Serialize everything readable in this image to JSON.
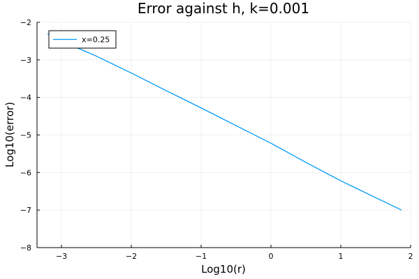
{
  "chart_data": {
    "type": "line",
    "title": "Error against h, k=0.001",
    "xlabel": "Log10(r)",
    "ylabel": "Log10(error)",
    "xlim": [
      -3.35,
      2.0
    ],
    "ylim": [
      -8,
      -2
    ],
    "xticks": [
      -3,
      -2,
      -1,
      0,
      1,
      2
    ],
    "xtick_labels": [
      "−3",
      "−2",
      "−1",
      "0",
      "1",
      "2"
    ],
    "yticks": [
      -2,
      -3,
      -4,
      -5,
      -6,
      -7,
      -8
    ],
    "ytick_labels": [
      "−2",
      "−3",
      "−4",
      "−5",
      "−6",
      "−7",
      "−8"
    ],
    "grid": true,
    "legend_position": "top-left",
    "series": [
      {
        "name": "x=0.25",
        "color": "#009AFA",
        "x": [
          -3.2,
          -3.0,
          -2.5,
          -2.0,
          -1.5,
          -1.0,
          -0.5,
          0.0,
          0.5,
          1.0,
          1.5,
          1.87
        ],
        "y": [
          -2.3,
          -2.5,
          -2.9,
          -3.35,
          -3.82,
          -4.28,
          -4.75,
          -5.22,
          -5.73,
          -6.22,
          -6.67,
          -7.0
        ]
      }
    ]
  }
}
